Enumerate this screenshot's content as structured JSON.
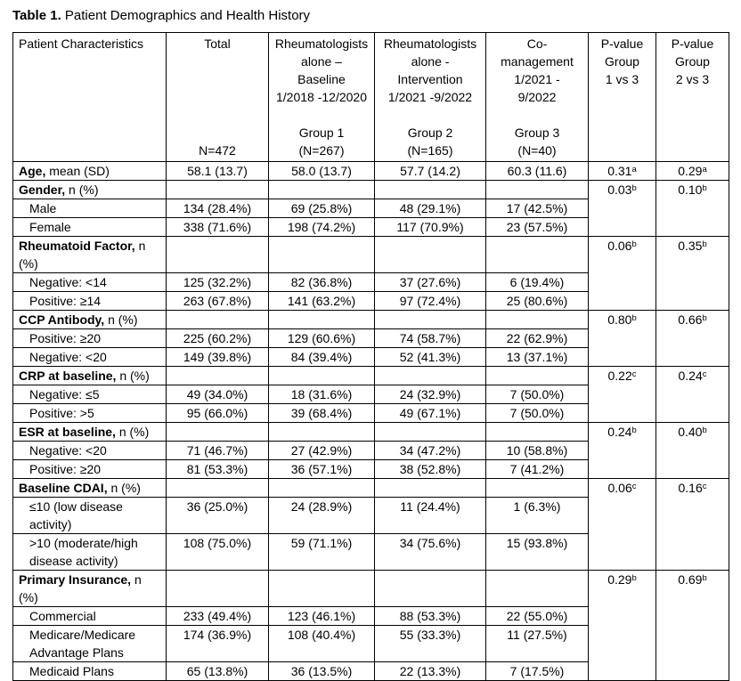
{
  "title": {
    "label_bold": "Table 1.",
    "label_rest": " Patient Demographics and Health History"
  },
  "table": {
    "header": {
      "patient_characteristics": "Patient Characteristics",
      "total": "Total\n\n\n\n\n\nN=472",
      "group1": "Rheumatologists\nalone –\nBaseline\n1/2018 -12/2020\n\nGroup 1\n(N=267)",
      "group2": "Rheumatologists\nalone -\nIntervention\n1/2021 -9/2022\n\nGroup 2\n(N=165)",
      "group3": "Co-\nmanagement\n1/2021 -\n9/2022\n\nGroup 3\n(N=40)",
      "pvalue13": "P-value\nGroup\n1 vs 3",
      "pvalue23": "P-value\nGroup\n2 vs 3"
    },
    "sections": [
      {
        "p13": "0.31",
        "p13_sup": "a",
        "p23": "0.29",
        "p23_sup": "a",
        "rows": [
          {
            "bold": "Age,",
            "rest": " mean (SD)",
            "indent": false,
            "values": [
              "58.1 (13.7)",
              "58.0 (13.7)",
              "57.7 (14.2)",
              "60.3 (11.6)"
            ]
          }
        ]
      },
      {
        "p13": "0.03",
        "p13_sup": "b",
        "p23": "0.10",
        "p23_sup": "b",
        "rows": [
          {
            "bold": "Gender,",
            "rest": " n (%)",
            "indent": false,
            "values": [
              "",
              "",
              "",
              ""
            ]
          },
          {
            "bold": "",
            "rest": "Male",
            "indent": true,
            "values": [
              "134 (28.4%)",
              "69 (25.8%)",
              "48 (29.1%)",
              "17 (42.5%)"
            ]
          },
          {
            "bold": "",
            "rest": "Female",
            "indent": true,
            "values": [
              "338 (71.6%)",
              "198 (74.2%)",
              "117 (70.9%)",
              "23 (57.5%)"
            ]
          }
        ]
      },
      {
        "p13": "0.06",
        "p13_sup": "b",
        "p23": "0.35",
        "p23_sup": "b",
        "rows": [
          {
            "bold": "Rheumatoid Factor,",
            "rest": " n (%)",
            "indent": false,
            "values": [
              "",
              "",
              "",
              ""
            ]
          },
          {
            "bold": "",
            "rest": "Negative: <14",
            "indent": true,
            "values": [
              "125 (32.2%)",
              "82 (36.8%)",
              "37 (27.6%)",
              "6 (19.4%)"
            ]
          },
          {
            "bold": "",
            "rest": "Positive: ≥14",
            "indent": true,
            "values": [
              "263 (67.8%)",
              "141 (63.2%)",
              "97 (72.4%)",
              "25 (80.6%)"
            ]
          }
        ]
      },
      {
        "p13": "0.80",
        "p13_sup": "b",
        "p23": "0.66",
        "p23_sup": "b",
        "rows": [
          {
            "bold": "CCP Antibody,",
            "rest": " n (%)",
            "indent": false,
            "values": [
              "",
              "",
              "",
              ""
            ]
          },
          {
            "bold": "",
            "rest": "Positive: ≥20",
            "indent": true,
            "values": [
              "225 (60.2%)",
              "129 (60.6%)",
              "74 (58.7%)",
              "22 (62.9%)"
            ]
          },
          {
            "bold": "",
            "rest": "Negative: <20",
            "indent": true,
            "values": [
              "149 (39.8%)",
              "84 (39.4%)",
              "52 (41.3%)",
              "13 (37.1%)"
            ]
          }
        ]
      },
      {
        "p13": "0.22",
        "p13_sup": "c",
        "p23": "0.24",
        "p23_sup": "c",
        "rows": [
          {
            "bold": "CRP at baseline,",
            "rest": " n (%)",
            "indent": false,
            "values": [
              "",
              "",
              "",
              ""
            ]
          },
          {
            "bold": "",
            "rest": "Negative: ≤5",
            "indent": true,
            "values": [
              "49 (34.0%)",
              "18 (31.6%)",
              "24 (32.9%)",
              "7 (50.0%)"
            ]
          },
          {
            "bold": "",
            "rest": "Positive: >5",
            "indent": true,
            "values": [
              "95 (66.0%)",
              "39 (68.4%)",
              "49 (67.1%)",
              "7 (50.0%)"
            ]
          }
        ]
      },
      {
        "p13": "0.24",
        "p13_sup": "b",
        "p23": "0.40",
        "p23_sup": "b",
        "rows": [
          {
            "bold": "ESR at baseline,",
            "rest": " n (%)",
            "indent": false,
            "values": [
              "",
              "",
              "",
              ""
            ]
          },
          {
            "bold": "",
            "rest": "Negative: <20",
            "indent": true,
            "values": [
              "71 (46.7%)",
              "27 (42.9%)",
              "34 (47.2%)",
              "10 (58.8%)"
            ]
          },
          {
            "bold": "",
            "rest": "Positive: ≥20",
            "indent": true,
            "values": [
              "81 (53.3%)",
              "36 (57.1%)",
              "38 (52.8%)",
              "7 (41.2%)"
            ]
          }
        ]
      },
      {
        "p13": "0.06",
        "p13_sup": "c",
        "p23": "0.16",
        "p23_sup": "c",
        "rows": [
          {
            "bold": "Baseline CDAI,",
            "rest": " n (%)",
            "indent": false,
            "values": [
              "",
              "",
              "",
              ""
            ]
          },
          {
            "bold": "",
            "rest": "≤10 (low disease activity)",
            "indent": true,
            "values": [
              "36 (25.0%)",
              "24 (28.9%)",
              "11 (24.4%)",
              "1 (6.3%)"
            ]
          },
          {
            "bold": "",
            "rest": ">10 (moderate/high disease activity)",
            "indent": true,
            "values": [
              "108 (75.0%)",
              "59 (71.1%)",
              "34 (75.6%)",
              "15 (93.8%)"
            ]
          }
        ]
      },
      {
        "p13": "0.29",
        "p13_sup": "b",
        "p23": "0.69",
        "p23_sup": "b",
        "rows": [
          {
            "bold": "Primary Insurance,",
            "rest": " n (%)",
            "indent": false,
            "values": [
              "",
              "",
              "",
              ""
            ]
          },
          {
            "bold": "",
            "rest": "Commercial",
            "indent": true,
            "values": [
              "233 (49.4%)",
              "123 (46.1%)",
              "88 (53.3%)",
              "22 (55.0%)"
            ]
          },
          {
            "bold": "",
            "rest": "Medicare/Medicare Advantage Plans",
            "indent": true,
            "values": [
              "174 (36.9%)",
              "108 (40.4%)",
              "55 (33.3%)",
              "11 (27.5%)"
            ]
          },
          {
            "bold": "",
            "rest": "Medicaid Plans",
            "indent": true,
            "values": [
              "65 (13.8%)",
              "36 (13.5%)",
              "22 (13.3%)",
              "7 (17.5%)"
            ]
          }
        ]
      }
    ]
  }
}
